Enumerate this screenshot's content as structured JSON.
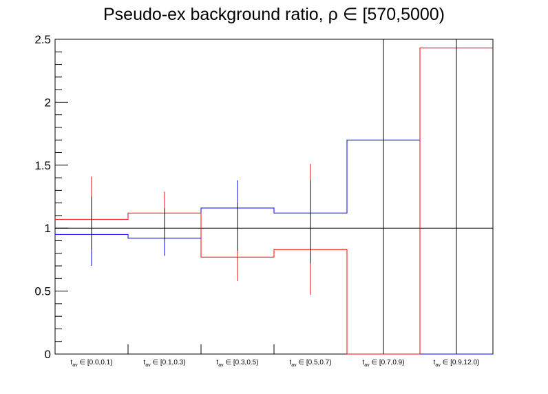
{
  "chart_data": {
    "type": "step",
    "title": "Pseudo-ex background ratio, ρ ∈ [570,5000)",
    "xlabel": "",
    "ylabel": "",
    "ylim": [
      0,
      2.5
    ],
    "y_major_ticks": [
      "0",
      "0.5",
      "1",
      "1.5",
      "2",
      "2.5"
    ],
    "categories": [
      {
        "var": "t",
        "sub": "av",
        "range": "∈ [0.0,0.1)"
      },
      {
        "var": "t",
        "sub": "av",
        "range": "∈ [0.1,0.3)"
      },
      {
        "var": "t",
        "sub": "av",
        "range": "∈ [0.3,0.5)"
      },
      {
        "var": "t",
        "sub": "av",
        "range": "∈ [0.5,0.7)"
      },
      {
        "var": "t",
        "sub": "av",
        "range": "∈ [0.7,0.9)"
      },
      {
        "var": "t",
        "sub": "av",
        "range": "∈ [0.9,12.0)"
      }
    ],
    "reference_line": 1,
    "series": [
      {
        "color": "#0000ff",
        "values": [
          0.95,
          0.92,
          1.16,
          1.12,
          1.7,
          0.0
        ],
        "errors": [
          [
            0.7,
            1.23
          ],
          [
            0.78,
            1.05
          ],
          [
            0.95,
            1.38
          ],
          [
            0.92,
            1.33
          ],
          [
            0.0,
            2.5
          ],
          null
        ]
      },
      {
        "color": "#ff0000",
        "values": [
          1.07,
          1.12,
          0.77,
          0.83,
          0.0,
          2.43
        ],
        "errors": [
          [
            0.85,
            1.41
          ],
          [
            0.93,
            1.29
          ],
          [
            0.58,
            0.95
          ],
          [
            0.47,
            1.51
          ],
          null,
          [
            1.5,
            2.5
          ]
        ]
      },
      {
        "color": "#000000",
        "values": [
          null,
          null,
          null,
          null,
          null,
          null
        ],
        "errors": [
          [
            0.83,
            1.25
          ],
          [
            0.9,
            1.16
          ],
          [
            0.82,
            1.2
          ],
          [
            0.72,
            1.38
          ],
          [
            0.0,
            2.5
          ],
          [
            0.0,
            2.5
          ]
        ]
      }
    ]
  }
}
